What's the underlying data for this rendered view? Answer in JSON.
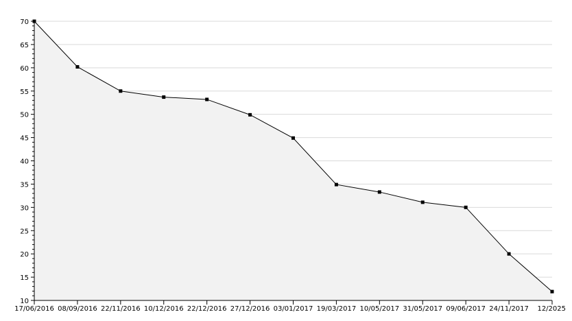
{
  "chart_data": {
    "type": "area",
    "categories": [
      "17/06/2016",
      "08/09/2016",
      "22/11/2016",
      "10/12/2016",
      "22/12/2016",
      "27/12/2016",
      "03/01/2017",
      "19/03/2017",
      "10/05/2017",
      "31/05/2017",
      "09/06/2017",
      "24/11/2017",
      "12/2025"
    ],
    "values": [
      70,
      60.2,
      55,
      53.7,
      53.2,
      49.9,
      44.9,
      34.9,
      33.3,
      31.1,
      30,
      20,
      11.9
    ],
    "ylim": [
      10,
      70
    ],
    "yticks": [
      10,
      15,
      20,
      25,
      30,
      35,
      40,
      45,
      50,
      55,
      60,
      65,
      70
    ],
    "grid": true,
    "title": "",
    "xlabel": "",
    "ylabel": "",
    "colors": {
      "fill": "#f2f2f2",
      "line": "#000000",
      "grid": "#d9d9d9"
    }
  }
}
